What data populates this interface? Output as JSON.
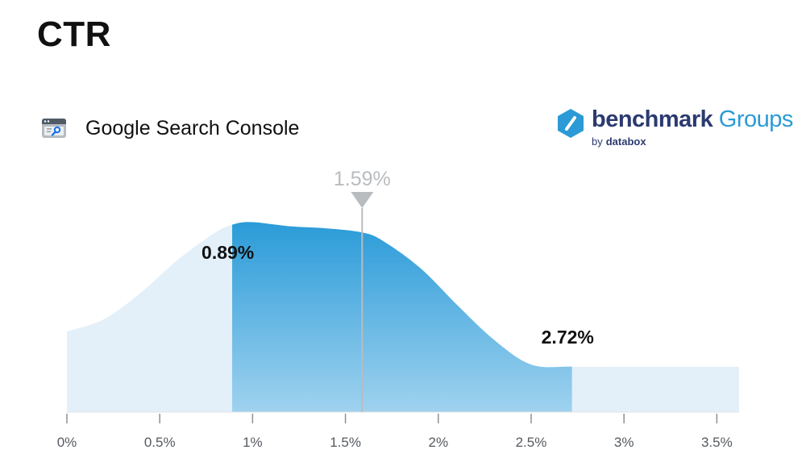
{
  "page": {
    "title": "CTR",
    "source_label": "Google Search Console",
    "source_icon": "search-console-icon"
  },
  "brand": {
    "name": "benchmark",
    "name_suffix": "Groups",
    "sub_by": "by",
    "sub_name": "databox",
    "colors": {
      "dark": "#2b3a70",
      "accent": "#2b9ad6"
    }
  },
  "chart_data": {
    "type": "area",
    "title": "",
    "xlabel": "",
    "ylabel": "",
    "xlim": [
      0,
      3.62
    ],
    "x_ticks": [
      0,
      0.5,
      1,
      1.5,
      2,
      2.5,
      3,
      3.5
    ],
    "x_tick_labels": [
      "0%",
      "0.5%",
      "1%",
      "1.5%",
      "2%",
      "2.5%",
      "3%",
      "3.5%"
    ],
    "y_axis_visible": false,
    "grid": false,
    "curve": {
      "x": [
        0,
        0.2,
        0.4,
        0.6,
        0.8,
        0.9,
        1.0,
        1.2,
        1.4,
        1.59,
        1.7,
        1.9,
        2.1,
        2.3,
        2.5,
        2.72,
        3.0,
        3.3,
        3.62
      ],
      "y": [
        0.39,
        0.45,
        0.58,
        0.74,
        0.87,
        0.91,
        0.92,
        0.9,
        0.89,
        0.87,
        0.83,
        0.7,
        0.52,
        0.35,
        0.23,
        0.22,
        0.22,
        0.22,
        0.22
      ]
    },
    "highlight_range": {
      "lower": 0.89,
      "upper": 2.72,
      "lower_label": "0.89%",
      "upper_label": "2.72%"
    },
    "median": {
      "value": 1.59,
      "label": "1.59%"
    },
    "colors": {
      "light_fill": "#e3f0fa",
      "band_top": "#2a9bd8",
      "band_bottom": "#9fd2ef",
      "marker": "#b9bcbf",
      "axis": "#8c9196",
      "tick_label": "#555a5f",
      "range_label": "#111111"
    }
  }
}
